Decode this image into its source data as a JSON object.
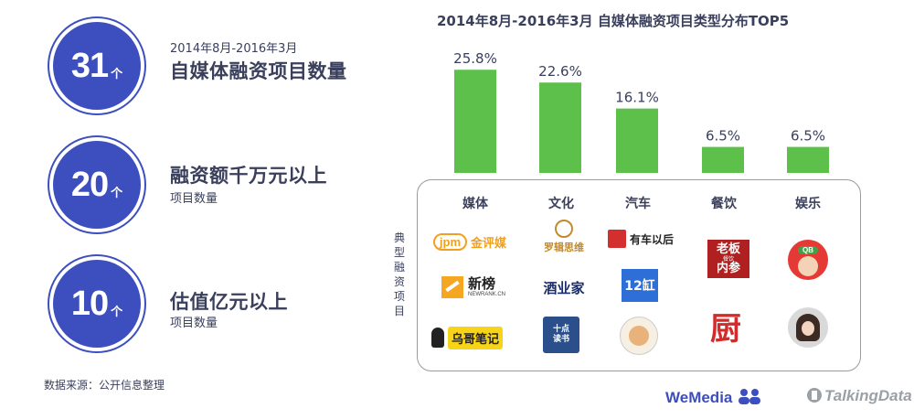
{
  "stats": [
    {
      "number": "31",
      "unit": "个",
      "small": "2014年8月-2016年3月",
      "big": "自媒体融资项目数量"
    },
    {
      "number": "20",
      "unit": "个",
      "big": "融资额千万元以上",
      "small": "项目数量"
    },
    {
      "number": "10",
      "unit": "个",
      "big": "估值亿元以上",
      "small": "项目数量"
    }
  ],
  "source": "数据来源：公开信息整理",
  "colors": {
    "accent": "#3d4fbf",
    "bar": "#5dc04a",
    "text": "#3a3f5c"
  },
  "chart_data": {
    "type": "bar",
    "title": "2014年8月-2016年3月  自媒体融资项目类型分布TOP5",
    "categories": [
      "媒体",
      "文化",
      "汽车",
      "餐饮",
      "娱乐"
    ],
    "values": [
      25.8,
      22.6,
      16.1,
      6.5,
      6.5
    ],
    "value_labels": [
      "25.8%",
      "22.6%",
      "16.1%",
      "6.5%",
      "6.5%"
    ],
    "unit": "%",
    "ylim": [
      0,
      27
    ],
    "grid": false
  },
  "panel": {
    "vertical_label": "典型融资项目",
    "logos": {
      "jpm_text": "jpm",
      "jinpingmei": "金评媒",
      "luoji": "罗辑思维",
      "youche": "有车以后",
      "xinbang": "新榜",
      "newrank": "NEWRANK.CN",
      "jiuyejia": "酒业家",
      "12hong": "12缸",
      "wuge": "乌哥笔记",
      "dushu": "十点读书",
      "lao": "老板",
      "neican": "内参",
      "canyin": "餐饮",
      "chu": "厨",
      "qb": "QB"
    }
  },
  "brands": {
    "wemedia": "WeMedia",
    "talkingdata": "TalkingData"
  }
}
